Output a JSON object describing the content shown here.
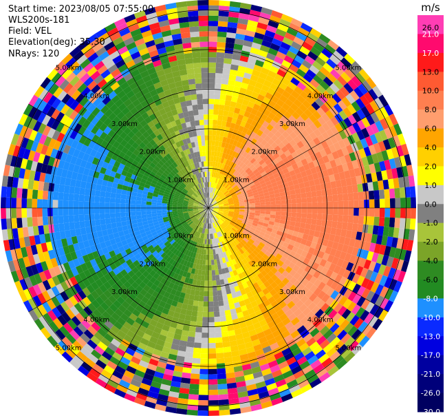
{
  "header": {
    "start_time": "Start time: 2023/08/05 07:55:00",
    "site": "WLS200s-181",
    "field": "Field: VEL",
    "elevation": "Elevation(deg): 35.30",
    "nrays": "NRays: 120"
  },
  "chart_data": {
    "type": "heatmap",
    "subtype": "ppi-polar",
    "n_rays": 120,
    "range_rings_km": [
      1.0,
      2.0,
      3.0,
      4.0,
      5.0
    ],
    "ring_labels": [
      "1.00km",
      "2.00km",
      "3.00km",
      "4.00km",
      "5.00km"
    ],
    "grid": true,
    "colorbar": {
      "unit": "m/s",
      "ticks": [
        "26.0",
        "21.0",
        "17.0",
        "13.0",
        "10.0",
        "8.0",
        "6.0",
        "4.0",
        "2.0",
        "1.0",
        "0.0",
        "-1.0",
        "-2.0",
        "-4.0",
        "-6.0",
        "-8.0",
        "-10.0",
        "-13.0",
        "-17.0",
        "-21.0",
        "-26.0",
        "-30.0"
      ],
      "colors": [
        "#ff3db4",
        "#ff0a6e",
        "#ff1a1a",
        "#ff5a32",
        "#ff7f50",
        "#ff9e6e",
        "#ffa500",
        "#ffd000",
        "#ffff00",
        "#c8c8c8",
        "#808080",
        "#a8c43a",
        "#7ba428",
        "#2e8b22",
        "#228b22",
        "#1e90ff",
        "#0a2aff",
        "#0000e0",
        "#0000a0",
        "#00007a",
        "#000060"
      ]
    },
    "velocity_pattern": {
      "inner_core_km": 4.0,
      "positive_sector_deg": [
        20,
        160
      ],
      "negative_sector_deg": [
        200,
        340
      ],
      "noise_beyond_km": 4.0
    }
  }
}
